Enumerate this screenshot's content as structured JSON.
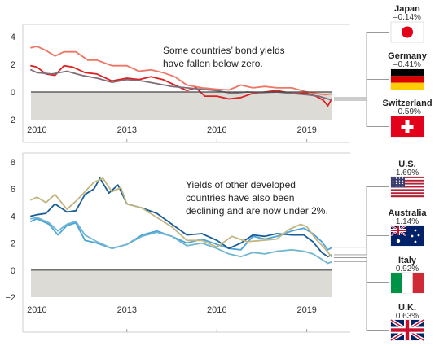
{
  "colors": {
    "negative_band": "#dcdbd5",
    "axis": "#444444",
    "frame": "#cfcfcf",
    "leader": "#999999"
  },
  "chart_data": [
    {
      "type": "line",
      "x_tick_labels": [
        "2010",
        "2013",
        "2016",
        "2019"
      ],
      "x_ticks": [
        2010,
        2013,
        2016,
        2019
      ],
      "xlim": [
        2009.8,
        2019.85
      ],
      "ylim": [
        -2,
        4
      ],
      "y_ticks": [
        4,
        2,
        0,
        -2
      ],
      "y_tick_labels": [
        "4",
        "2",
        "0",
        "−2"
      ],
      "grid": false,
      "annotation": [
        "Some countries’ bond yields",
        "have fallen below zero."
      ],
      "series": [
        {
          "name": "Japan",
          "label_value": "–0.14%",
          "flag": "japan-flag",
          "color": "#ef7565",
          "x": [
            2009.8,
            2010.0,
            2010.3,
            2010.6,
            2010.9,
            2011.3,
            2011.7,
            2012.0,
            2012.5,
            2013.0,
            2013.4,
            2013.8,
            2014.2,
            2014.6,
            2015.0,
            2015.5,
            2016.0,
            2016.4,
            2016.8,
            2017.2,
            2017.6,
            2018.0,
            2018.5,
            2019.0,
            2019.3,
            2019.6,
            2019.85
          ],
          "y": [
            3.2,
            3.3,
            3.0,
            2.6,
            2.9,
            2.9,
            2.3,
            2.3,
            1.9,
            1.9,
            1.5,
            1.6,
            1.4,
            1.1,
            0.5,
            0.3,
            0.2,
            0.15,
            0.5,
            0.3,
            0.4,
            0.3,
            0.3,
            0.0,
            -0.1,
            -0.2,
            -0.14
          ]
        },
        {
          "name": "Germany",
          "label_value": "–0.41%",
          "flag": "germany-flag",
          "color": "#dd2121",
          "x": [
            2009.8,
            2010.0,
            2010.3,
            2010.6,
            2010.9,
            2011.2,
            2011.6,
            2012.0,
            2012.5,
            2013.0,
            2013.4,
            2013.8,
            2014.2,
            2014.6,
            2015.0,
            2015.3,
            2015.6,
            2016.0,
            2016.4,
            2016.8,
            2017.2,
            2017.6,
            2018.0,
            2018.5,
            2019.0,
            2019.3,
            2019.55,
            2019.7,
            2019.85
          ],
          "y": [
            1.9,
            1.8,
            1.3,
            1.2,
            1.9,
            1.8,
            1.4,
            1.3,
            0.8,
            1.0,
            0.9,
            1.1,
            0.9,
            0.5,
            0.1,
            0.3,
            -0.3,
            -0.3,
            -0.5,
            -0.4,
            -0.1,
            0.0,
            0.1,
            -0.1,
            -0.1,
            -0.3,
            -0.6,
            -1.0,
            -0.41
          ]
        },
        {
          "name": "Switzerland",
          "label_value": "–0.59%",
          "flag": "switzerland-flag",
          "color": "#7f6d78",
          "x": [
            2009.8,
            2010.0,
            2010.5,
            2011.0,
            2011.5,
            2012.0,
            2012.5,
            2013.0,
            2013.5,
            2014.0,
            2014.5,
            2015.0,
            2015.5,
            2016.0,
            2016.5,
            2017.0,
            2017.5,
            2018.0,
            2018.5,
            2019.0,
            2019.4,
            2019.7,
            2019.85
          ],
          "y": [
            1.6,
            1.4,
            1.3,
            1.5,
            1.2,
            1.0,
            0.7,
            0.9,
            0.8,
            0.6,
            0.4,
            0.3,
            0.2,
            0.1,
            -0.1,
            0.0,
            -0.05,
            0.0,
            -0.1,
            -0.2,
            -0.3,
            -0.5,
            -0.59
          ]
        }
      ]
    },
    {
      "type": "line",
      "x_tick_labels": [
        "2010",
        "2013",
        "2016",
        "2019"
      ],
      "x_ticks": [
        2010,
        2013,
        2016,
        2019
      ],
      "xlim": [
        2009.8,
        2019.85
      ],
      "ylim": [
        -2,
        8
      ],
      "y_ticks": [
        8,
        6,
        4,
        2,
        0,
        -2
      ],
      "y_tick_labels": [
        "8",
        "6",
        "4",
        "2",
        "0",
        "−2"
      ],
      "grid": false,
      "annotation": [
        "Yields of other developed",
        "countries have also been",
        "declining and are now under 2%."
      ],
      "series": [
        {
          "name": "U.S.",
          "label_value": "1.69%",
          "flag": "us-flag",
          "color": "#4aa3d9",
          "x": [
            2009.8,
            2010.0,
            2010.4,
            2010.7,
            2011.0,
            2011.3,
            2011.6,
            2012.0,
            2012.5,
            2013.0,
            2013.5,
            2014.0,
            2014.5,
            2015.0,
            2015.5,
            2016.0,
            2016.4,
            2016.8,
            2017.2,
            2017.6,
            2018.0,
            2018.5,
            2018.9,
            2019.2,
            2019.5,
            2019.7,
            2019.85
          ],
          "y": [
            3.6,
            3.8,
            3.4,
            2.6,
            3.3,
            3.5,
            2.2,
            2.0,
            1.6,
            1.9,
            2.6,
            2.9,
            2.5,
            2.0,
            2.3,
            1.9,
            1.6,
            1.5,
            2.5,
            2.3,
            2.5,
            2.9,
            3.1,
            2.7,
            2.1,
            1.5,
            1.69
          ]
        },
        {
          "name": "Australia",
          "label_value": "1.14%",
          "flag": "australia-flag",
          "color": "#1b5e96",
          "x": [
            2009.8,
            2010.0,
            2010.3,
            2010.6,
            2011.0,
            2011.3,
            2011.6,
            2011.9,
            2012.1,
            2012.4,
            2012.7,
            2013.0,
            2013.5,
            2014.0,
            2014.5,
            2015.0,
            2015.5,
            2016.0,
            2016.4,
            2016.8,
            2017.2,
            2017.6,
            2018.0,
            2018.5,
            2018.9,
            2019.2,
            2019.5,
            2019.7,
            2019.85
          ],
          "y": [
            4.0,
            4.1,
            4.2,
            4.9,
            4.3,
            4.4,
            5.6,
            6.0,
            6.8,
            5.7,
            6.3,
            4.9,
            4.6,
            4.2,
            3.4,
            2.6,
            2.7,
            2.2,
            1.6,
            2.0,
            2.6,
            2.5,
            2.7,
            2.6,
            2.6,
            2.1,
            1.3,
            1.0,
            1.14
          ]
        },
        {
          "name": "Italy",
          "label_value": "0.92%",
          "flag": "italy-flag",
          "color": "#c2b680",
          "x": [
            2009.8,
            2010.0,
            2010.3,
            2010.6,
            2011.0,
            2011.3,
            2011.6,
            2011.9,
            2012.2,
            2012.5,
            2012.8,
            2013.0,
            2013.5,
            2014.0,
            2014.5,
            2015.0,
            2015.5,
            2016.0,
            2016.5,
            2017.0,
            2017.5,
            2018.0,
            2018.4,
            2018.8,
            2019.0,
            2019.3,
            2019.6,
            2019.85
          ],
          "y": [
            5.2,
            5.4,
            5.0,
            5.6,
            4.5,
            5.1,
            5.8,
            6.5,
            6.8,
            5.8,
            6.1,
            4.9,
            4.6,
            3.9,
            3.2,
            2.2,
            2.2,
            1.7,
            2.5,
            2.1,
            2.2,
            2.3,
            3.0,
            3.4,
            3.2,
            2.3,
            1.6,
            0.92
          ]
        },
        {
          "name": "U.K.",
          "label_value": "0.63%",
          "flag": "uk-flag",
          "color": "#6fb5d0",
          "x": [
            2009.8,
            2010.0,
            2010.4,
            2010.7,
            2011.0,
            2011.3,
            2011.6,
            2012.0,
            2012.5,
            2013.0,
            2013.5,
            2014.0,
            2014.5,
            2015.0,
            2015.5,
            2016.0,
            2016.4,
            2016.8,
            2017.2,
            2017.6,
            2018.0,
            2018.5,
            2018.9,
            2019.2,
            2019.5,
            2019.7,
            2019.85
          ],
          "y": [
            3.8,
            3.9,
            3.5,
            2.9,
            3.4,
            3.6,
            2.6,
            2.1,
            1.6,
            1.9,
            2.5,
            2.8,
            2.5,
            1.8,
            2.0,
            1.6,
            1.2,
            1.0,
            1.3,
            1.2,
            1.4,
            1.5,
            1.4,
            1.2,
            0.8,
            0.5,
            0.63
          ]
        }
      ]
    }
  ]
}
